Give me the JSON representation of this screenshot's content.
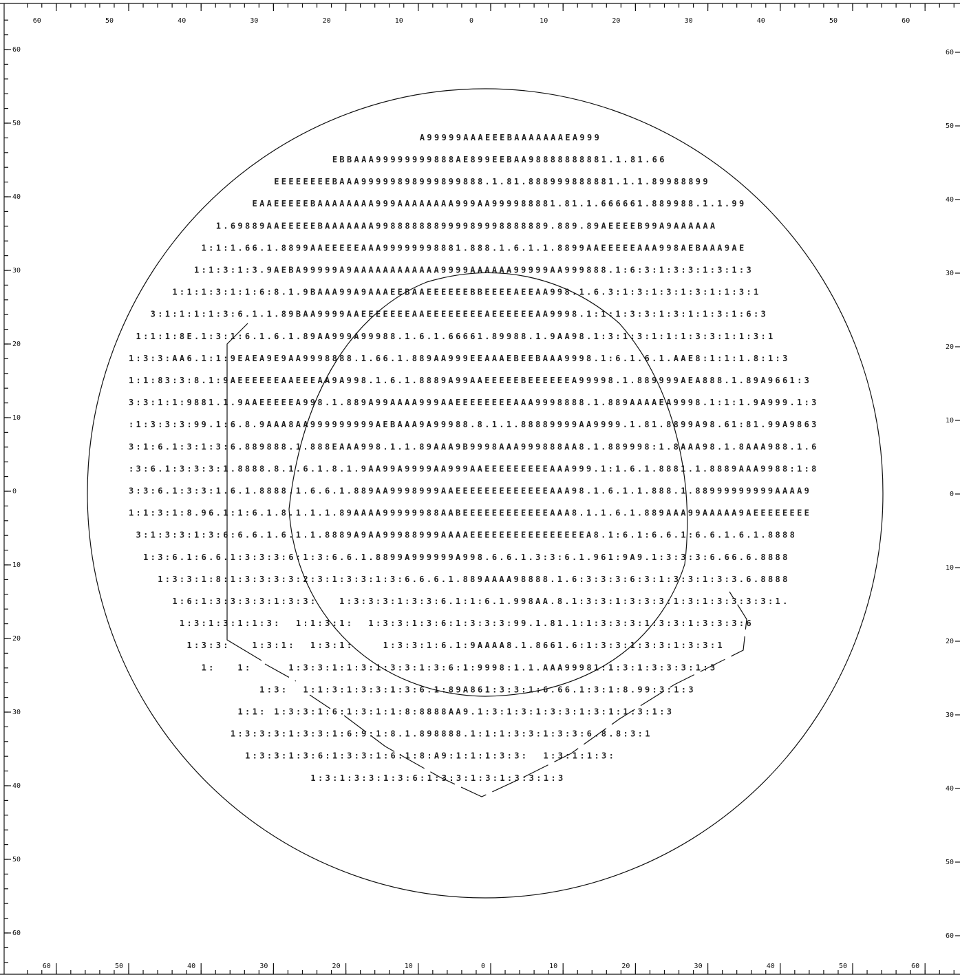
{
  "scales": {
    "top": [
      60,
      50,
      40,
      30,
      20,
      10,
      0,
      10,
      20,
      30,
      40,
      50,
      60
    ],
    "bottom": [
      60,
      50,
      40,
      30,
      20,
      10,
      0,
      10,
      20,
      30,
      40,
      50,
      60
    ],
    "left": [
      60,
      50,
      40,
      30,
      20,
      10,
      0,
      10,
      20,
      30,
      40,
      50,
      60
    ],
    "right": [
      60,
      50,
      40,
      30,
      20,
      10,
      0,
      10,
      20,
      30,
      40,
      50,
      60
    ]
  },
  "field_rows": [
    "                                        A99999AAAEEEBAAAAAAAEA999",
    "                            EBBAAA99999999888AE899EEBAA98888888881.1.81.66",
    "                    EEEEEEEEBAAA99999898999899888.1.81.888999888881.1.1.89988899",
    "                 EAAEEEEEBAAAAAAAA999AAAAAAAA999AA999988881.81.1.666661.889988.1.1.99",
    "            1.69889AAEEEEEBAAAAAAA998888888999989998888889.889.89AEEEEB99A9AAAAAA",
    "          1:1:1.66.1.8899AAEEEEEAAA99999998881.888.1.6.1.1.8899AAEEEEEAAA998AEBAAA9AE",
    "         1:1:3:1:3.9AEBA99999A9AAAAAAAAAAAA9999AAAAAA99999AA999888.1:6:3:1:3:3:1:3:1:3",
    "      1:1:1:3:1:1:6:8.1.9BAAA99A9AAAEEBAAEEEEEEBBEEEEAEEAA998.1.6.3:1:3:1:3:1:3:1:1:3:1",
    "   3:1:1:1:1:3:6.1.1.89BAA9999AAEEEEEEEAAEEEEEEEEAEEEEEEAA9998.1:1:1:3:3:1:3:1:1:3:1:6:3",
    " 1:1:1:8E.1:3:1:6.1.6.1.89AA999A99988.1.6.1.66661.89988.1.9AA98.1:3:1:3:1:1:1:3:3:1:1:3:1",
    "1:3:3:AA6.1:1:9EAEA9E9AA9998888.1.66.1.889AA999EEAAAEBEEBAAA9998.1:6.1.6.1.AAE8:1:1:1.8:1:3",
    "1:1:83:3:8.1:9AEEEEEEAAEEEAA9A998.1.6.1.8889A99AAEEEEEBEEEEEEA99998.1.889999AEA888.1.89A9661:3",
    "3:3:1:1:9881.1.9AAEEEEEA998.1.889A99AAAA999AAEEEEEEEEAAA9998888.1.889AAAAEA9998.1:1:1.9A999.1:3",
    ":1:3:3:3:99.1:6.8.9AAA8AA999999999AEBAAA9A99988.8.1.1.88889999AA9999.1.81.8899A98.61:81.99A9863",
    "3:1:6.1:3:1:3:6.889888.1.888EAAA998.1.1.89AAA9B9998AAA999888AA8.1.889998:1.8AAA98.1.8AAA988.1.6",
    ":3:6.1:3:3:3:1.8888.8.1.6.1.8.1.9AA99A9999AA999AAEEEEEEEEEAAA999.1:1.6.1.8881.1.8889AAA9988:1:8",
    "3:3:6.1:3:3:1.6.1.8888.1.6.6.1.889AA9998999AAEEEEEEEEEEEEEAAA98.1.6.1.1.888.1.88999999999AAAA9",
    "1:1:3:1:8.96.1:1:6.1.8.1.1.1.89AAAA99999988AABEEEEEEEEEEEEAAA8.1.1.6.1.889AAA99AAAAA9AEEEEEEEE",
    " 3:1:3:3:1:3:6:6.6.1.6.1.1.8889A9AA99988999AAAAEEEEEEEEEEEEEEEEA8.1:6.1:6.6.1:6.6.1.6.1.8888",
    "  1:3:6.1:6.6.1:3:3:3:6:1:3:6.6.1.8899A999999A998.6.6.1.3:3:6.1.961:9A9.1:3:3:3:6.66.6.8888",
    "    1:3:3:1:8:1:3:3:3:3:2:3:1:3:3:1:3:6.6.6.1.889AAAA98888.1.6:3:3:3:6:3:1:3:3:1:3:3.6.8888",
    "      1:6:1:3:3:3:3:1:3:3:   1:3:3:3:1:3:3:6.1:1:6.1.998AA.8.1:3:3:1:3:3:3:1:3:1:3:3:3:3:1.",
    "       1:3:1:3:1:1:3:  1:1:3:1:  1:3:3:1:3:6:1:3:3:3:99.1.81.1:1:3:3:3:1:3:3:1:3:3:3:6",
    "        1:3:3:   1:3:1:  1:3:1:    1:3:3:1:6.1:9AAAA8.1.8661.6:1:3:3:1:3:3:1:3:3:1",
    "          1:   1:     1:3:3:1:1:3:1:3:3:1:3:6:1:9998:1.1.AAA99981:1:3:1:3:3:3:1:3",
    "                  1:3:  1:1:3:1:3:3:1:3:6.1:89A861:3:3:1:6.66.1:3:1:8.99:3:1:3",
    "               1:1: 1:3:3:1:6:1:3:1:1:8:8888AA9.1:3:1:3:1:3:3:1:3:1:1:3:1:3",
    "              1:3:3:3:1:3:3:1:6:9:1:8.1.898888.1:1:1:3:3:1:3:3:6.8.8:3:1",
    "                1:3:3:1:3:6:1:3:3:1:6:1:8:A9:1:1:1:3:3:  1:3:1:1:3:",
    "                         1:3:1:3:3:1:3:6:1:3:3:1:3:1:3:3:1:3"
  ]
}
